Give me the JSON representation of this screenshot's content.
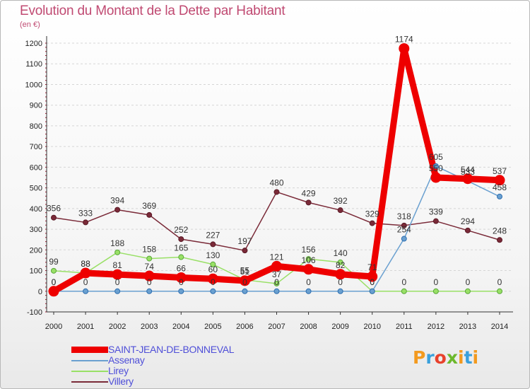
{
  "title": "Evolution du Montant de la Dette par Habitant",
  "subtitle": "(en €)",
  "logo_text": "Proxiti",
  "chart_data": {
    "type": "line",
    "x": [
      "2000",
      "2001",
      "2002",
      "2003",
      "2004",
      "2005",
      "2006",
      "2007",
      "2008",
      "2009",
      "2010",
      "2011",
      "2012",
      "2013",
      "2014"
    ],
    "ylim": [
      -100,
      1200
    ],
    "yticks": [
      -100,
      0,
      100,
      200,
      300,
      400,
      500,
      600,
      700,
      800,
      900,
      1000,
      1100,
      1200
    ],
    "grid": "horizontal",
    "legend_position": "bottom-left",
    "series": [
      {
        "name": "SAINT-JEAN-DE-BONNEVAL",
        "color": "#ee0000",
        "values": [
          0,
          88,
          81,
          74,
          66,
          60,
          51,
          121,
          106,
          82,
          71,
          1174,
          550,
          544,
          537
        ]
      },
      {
        "name": "Assenay",
        "color": "#6aa0d0",
        "values": [
          0,
          0,
          0,
          0,
          0,
          0,
          0,
          0,
          0,
          0,
          0,
          254,
          605,
          533,
          458
        ]
      },
      {
        "name": "Lirey",
        "color": "#99e066",
        "values": [
          99,
          88,
          188,
          158,
          165,
          130,
          55,
          37,
          156,
          140,
          0,
          0,
          0,
          0,
          0
        ]
      },
      {
        "name": "Villery",
        "color": "#7a2a38",
        "values": [
          356,
          333,
          394,
          369,
          252,
          227,
          197,
          480,
          429,
          392,
          329,
          318,
          339,
          294,
          248
        ]
      }
    ]
  }
}
